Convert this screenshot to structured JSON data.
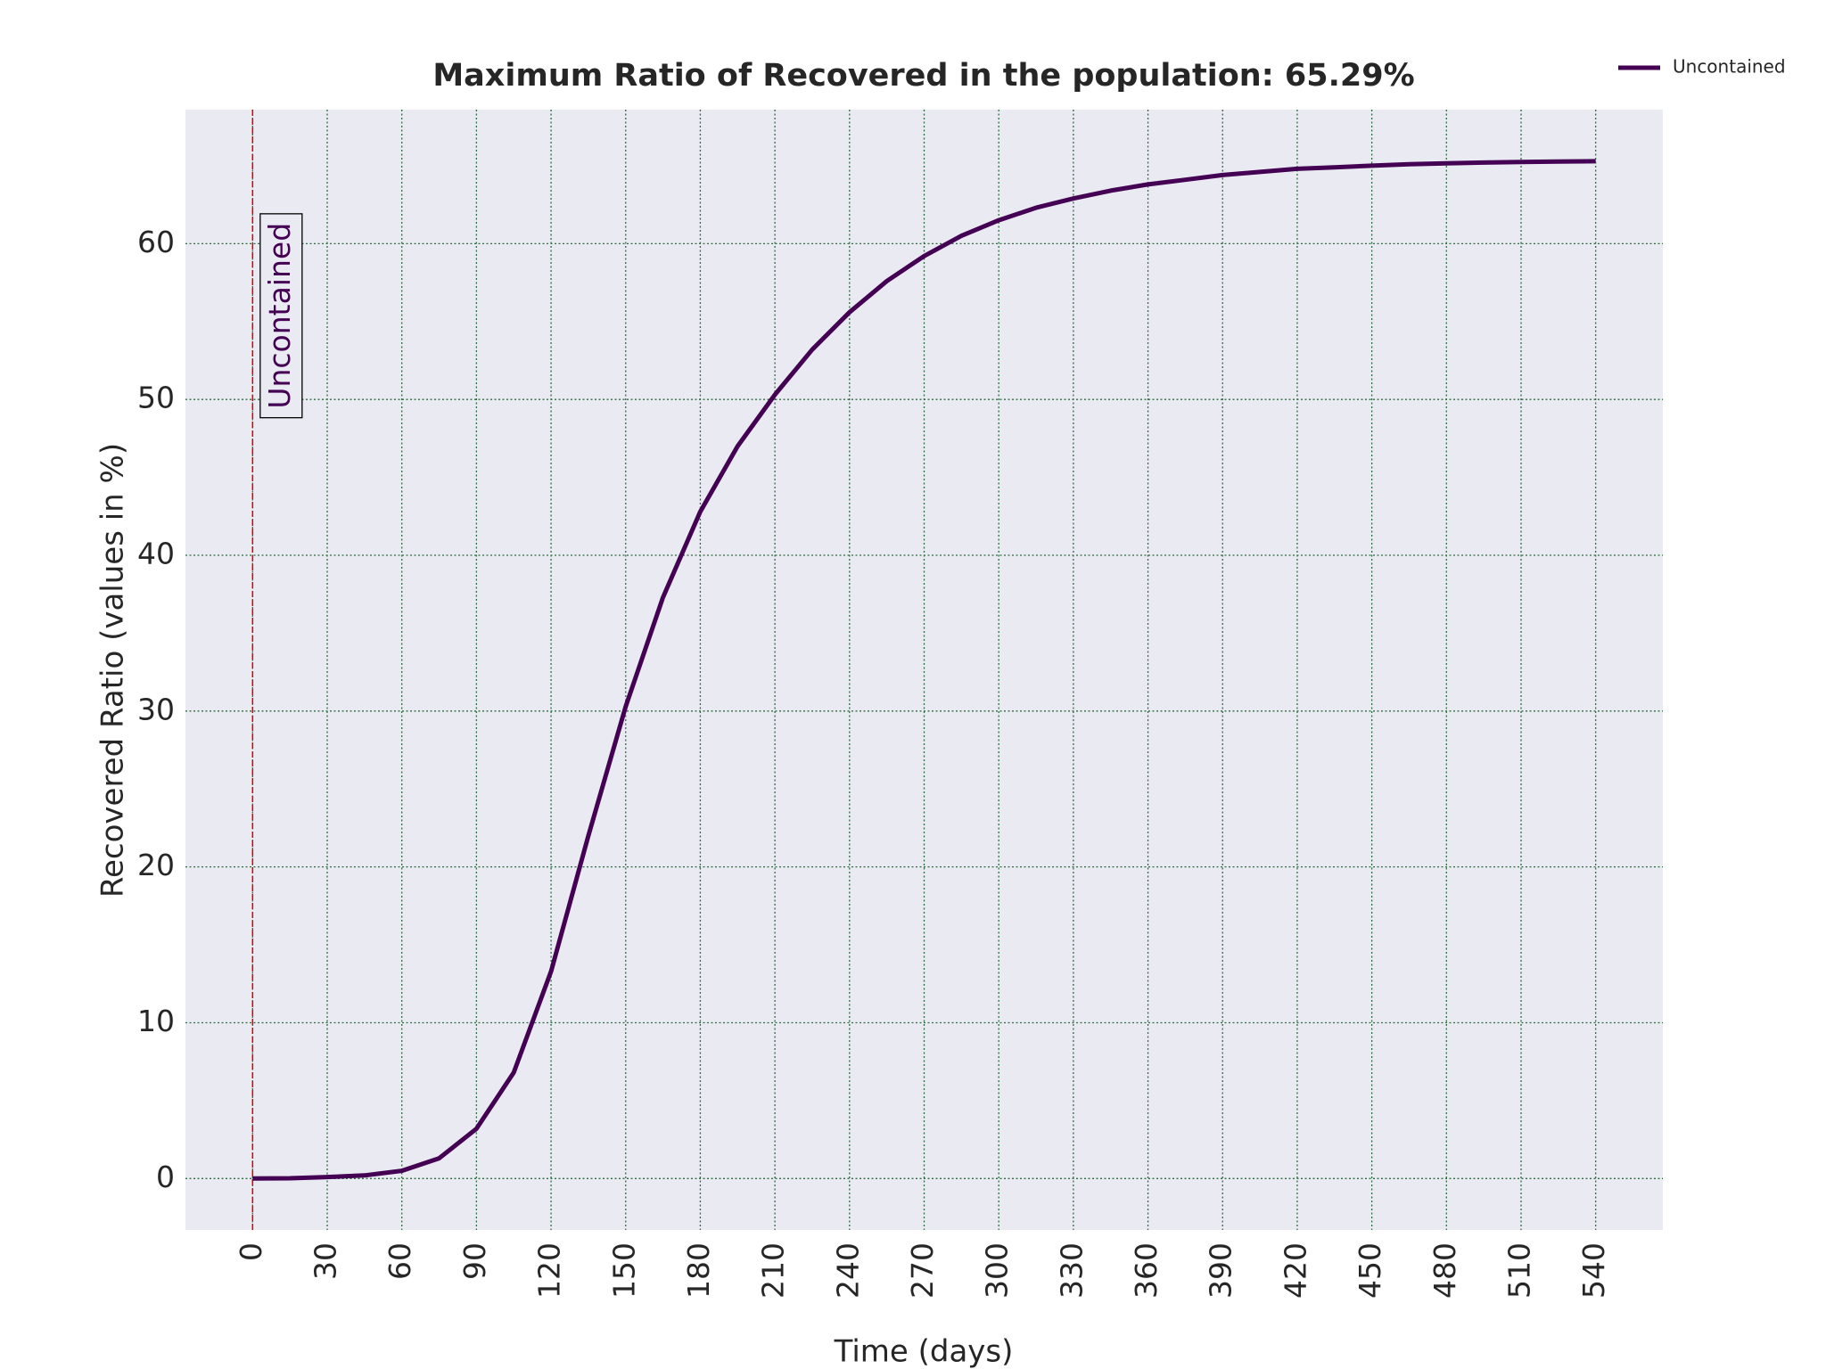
{
  "chart_data": {
    "type": "line",
    "title": "Maximum Ratio of Recovered in the population: 65.29%",
    "x_label": "Time (days)",
    "y_label": "Recovered Ratio (values in %)",
    "x": [
      0,
      15,
      30,
      45,
      60,
      75,
      90,
      105,
      120,
      135,
      150,
      165,
      180,
      195,
      210,
      225,
      240,
      255,
      270,
      285,
      300,
      315,
      330,
      345,
      360,
      375,
      390,
      405,
      420,
      435,
      450,
      465,
      480,
      495,
      510,
      525,
      540
    ],
    "series": [
      {
        "name": "Uncontained",
        "color": "#440154",
        "values": [
          0,
          0.02,
          0.1,
          0.2,
          0.5,
          1.3,
          3.2,
          6.8,
          13.3,
          22,
          30.3,
          37.3,
          42.8,
          47,
          50.3,
          53.2,
          55.6,
          57.6,
          59.2,
          60.5,
          61.5,
          62.3,
          62.9,
          63.4,
          63.8,
          64.1,
          64.4,
          64.6,
          64.8,
          64.9,
          65.0,
          65.1,
          65.15,
          65.2,
          65.24,
          65.27,
          65.29
        ]
      }
    ],
    "vlines": [
      {
        "x": 0,
        "label": "Uncontained",
        "color": "#e00000"
      }
    ],
    "xlim": [
      -27,
      567
    ],
    "ylim": [
      -3.3,
      68.6
    ],
    "xticks": [
      0,
      30,
      60,
      90,
      120,
      150,
      180,
      210,
      240,
      270,
      300,
      330,
      360,
      390,
      420,
      450,
      480,
      510,
      540
    ],
    "yticks": [
      0,
      10,
      20,
      30,
      40,
      50,
      60
    ],
    "grid": true,
    "legend": "upper right"
  }
}
